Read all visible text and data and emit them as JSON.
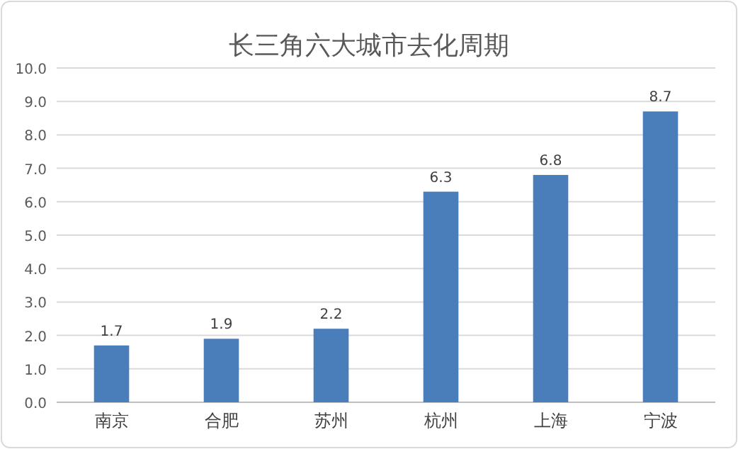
{
  "chart_data": {
    "type": "bar",
    "title": "长三角六大城市去化周期",
    "categories": [
      "南京",
      "合肥",
      "苏州",
      "杭州",
      "上海",
      "宁波"
    ],
    "values": [
      1.7,
      1.9,
      2.2,
      6.3,
      6.8,
      8.7
    ],
    "color": "#4a7ebb",
    "ylim": [
      0,
      10
    ],
    "yticks": [
      {
        "value": 0,
        "label": "0.0"
      },
      {
        "value": 1,
        "label": "1.0"
      },
      {
        "value": 2,
        "label": "2.0"
      },
      {
        "value": 3,
        "label": "3.0"
      },
      {
        "value": 4,
        "label": "4.0"
      },
      {
        "value": 5,
        "label": "5.0"
      },
      {
        "value": 6,
        "label": "6.0"
      },
      {
        "value": 7,
        "label": "7.0"
      },
      {
        "value": 8,
        "label": "8.0"
      },
      {
        "value": 9,
        "label": "9.0"
      },
      {
        "value": 10,
        "label": "10.0"
      }
    ],
    "grid": true,
    "data_labels": true
  }
}
